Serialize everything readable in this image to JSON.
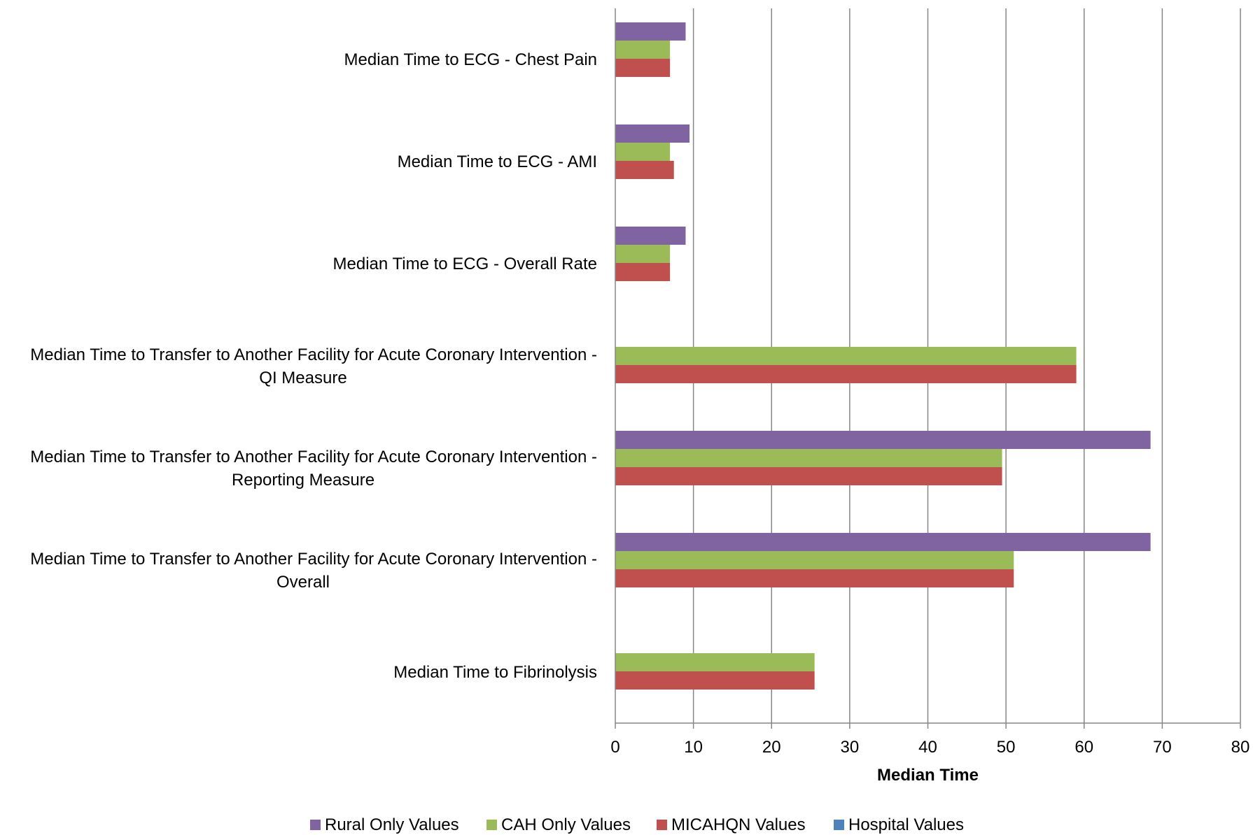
{
  "chart_data": {
    "type": "bar",
    "orientation": "horizontal",
    "categories": [
      [
        "Median Time to ECG - Chest Pain"
      ],
      [
        "Median Time to ECG - AMI"
      ],
      [
        "Median Time to ECG - Overall Rate"
      ],
      [
        "Median Time to Transfer to Another Facility for Acute Coronary Intervention -",
        "QI Measure"
      ],
      [
        "Median Time to Transfer to Another Facility for Acute Coronary Intervention -",
        "Reporting Measure"
      ],
      [
        "Median Time to Transfer to Another Facility for Acute Coronary Intervention -",
        "Overall"
      ],
      [
        "Median Time to Fibrinolysis"
      ]
    ],
    "series": [
      {
        "name": "Rural Only Values",
        "color": "#8064a2",
        "values": [
          9,
          9.5,
          9,
          null,
          68.5,
          68.5,
          null
        ]
      },
      {
        "name": "CAH Only Values",
        "color": "#9bbb59",
        "values": [
          7,
          7,
          7,
          59,
          49.5,
          51,
          25.5
        ]
      },
      {
        "name": "MICAHQN Values",
        "color": "#c0504d",
        "values": [
          7,
          7.5,
          7,
          59,
          49.5,
          51,
          25.5
        ]
      },
      {
        "name": "Hospital Values",
        "color": "#4f81bd",
        "values": [
          null,
          null,
          null,
          null,
          null,
          null,
          null
        ]
      }
    ],
    "xlabel": "Median Time",
    "xlim": [
      0,
      80
    ],
    "xticks": [
      0,
      10,
      20,
      30,
      40,
      50,
      60,
      70,
      80
    ],
    "grid": true,
    "legend": "bottom"
  }
}
